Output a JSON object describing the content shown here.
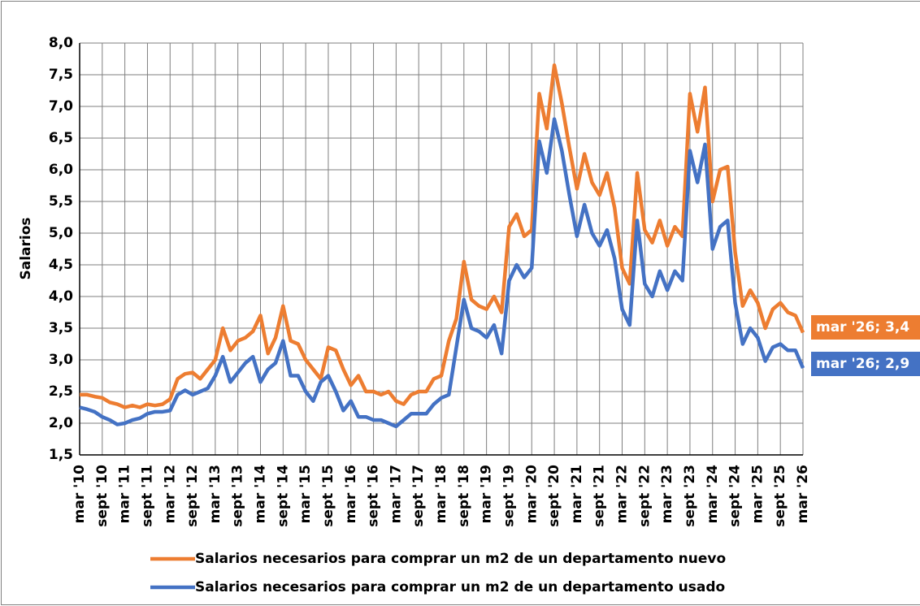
{
  "chart_data": {
    "type": "line",
    "y_label": "Salarios",
    "categories": [
      "mar '10",
      null,
      null,
      "sept '10",
      null,
      null,
      "mar '11",
      null,
      null,
      "sept '11",
      null,
      null,
      "mar '12",
      null,
      null,
      "sept '12",
      null,
      null,
      "mar '13",
      null,
      null,
      "sept '13",
      null,
      null,
      "mar '14",
      null,
      null,
      "sept '14",
      null,
      null,
      "mar '15",
      null,
      null,
      "sept '15",
      null,
      null,
      "mar '16",
      null,
      null,
      "sept '16",
      null,
      null,
      "mar '17",
      null,
      null,
      "sept '17",
      null,
      null,
      "mar '18",
      null,
      null,
      "sept '18",
      null,
      null,
      "mar '19",
      null,
      null,
      "sept '19",
      null,
      null,
      "mar '20",
      null,
      null,
      "sept '20",
      null,
      null,
      "mar '21",
      null,
      null,
      "sept '21",
      null,
      null,
      "mar '22",
      null,
      null,
      "sept '22",
      null,
      null,
      "mar '23",
      null,
      null,
      "sept '23",
      null,
      null,
      "mar '24",
      null,
      null,
      "sept '24",
      null,
      null,
      "mar '25",
      null,
      null,
      "sept '25",
      null,
      null,
      "mar '26"
    ],
    "series": [
      {
        "name": "Salarios necesarios para comprar un m2 de un departamento nuevo",
        "color": "#ed7d31",
        "values": [
          2.45,
          2.45,
          2.42,
          2.4,
          2.33,
          2.3,
          2.25,
          2.28,
          2.25,
          2.3,
          2.28,
          2.3,
          2.38,
          2.7,
          2.78,
          2.8,
          2.7,
          2.85,
          3.0,
          3.5,
          3.15,
          3.3,
          3.35,
          3.45,
          3.7,
          3.1,
          3.35,
          3.85,
          3.3,
          3.25,
          3.0,
          2.85,
          2.7,
          3.2,
          3.15,
          2.85,
          2.6,
          2.75,
          2.5,
          2.5,
          2.45,
          2.5,
          2.35,
          2.3,
          2.45,
          2.5,
          2.5,
          2.7,
          2.75,
          3.3,
          3.65,
          4.55,
          3.95,
          3.85,
          3.8,
          4.0,
          3.75,
          5.1,
          5.3,
          4.95,
          5.05,
          7.2,
          6.65,
          7.65,
          7.05,
          6.35,
          5.7,
          6.25,
          5.8,
          5.6,
          5.95,
          5.4,
          4.45,
          4.2,
          5.95,
          5.05,
          4.85,
          5.2,
          4.8,
          5.1,
          4.95,
          7.2,
          6.6,
          7.3,
          5.5,
          6.0,
          6.05,
          4.7,
          3.85,
          4.1,
          3.9,
          3.5,
          3.8,
          3.9,
          3.75,
          3.7,
          3.43
        ]
      },
      {
        "name": "Salarios necesarios para comprar un m2 de un departamento usado",
        "color": "#4472c4",
        "values": [
          2.25,
          2.22,
          2.18,
          2.1,
          2.05,
          1.98,
          2.0,
          2.05,
          2.08,
          2.15,
          2.18,
          2.18,
          2.2,
          2.45,
          2.52,
          2.45,
          2.5,
          2.55,
          2.75,
          3.05,
          2.65,
          2.8,
          2.95,
          3.05,
          2.65,
          2.85,
          2.95,
          3.3,
          2.75,
          2.75,
          2.5,
          2.35,
          2.65,
          2.75,
          2.5,
          2.2,
          2.35,
          2.1,
          2.1,
          2.05,
          2.05,
          2.0,
          1.95,
          2.05,
          2.15,
          2.15,
          2.15,
          2.3,
          2.4,
          2.45,
          3.2,
          3.95,
          3.5,
          3.45,
          3.35,
          3.55,
          3.1,
          4.25,
          4.5,
          4.3,
          4.45,
          6.45,
          5.95,
          6.8,
          6.3,
          5.6,
          4.95,
          5.45,
          5.0,
          4.8,
          5.05,
          4.6,
          3.8,
          3.55,
          5.2,
          4.2,
          4.0,
          4.4,
          4.1,
          4.4,
          4.25,
          6.3,
          5.8,
          6.4,
          4.75,
          5.1,
          5.2,
          3.9,
          3.25,
          3.5,
          3.35,
          2.98,
          3.2,
          3.25,
          3.15,
          3.15,
          2.87
        ]
      }
    ],
    "annotations": [
      {
        "text": "mar '26; 3,4",
        "color": "#ed7d31"
      },
      {
        "text": "mar '26; 2,9",
        "color": "#4472c4"
      }
    ],
    "ylim": [
      1.5,
      8.0
    ],
    "yticks": [
      {
        "value": 1.5,
        "label": "1,5"
      },
      {
        "value": 2.0,
        "label": "2,0"
      },
      {
        "value": 2.5,
        "label": "2,5"
      },
      {
        "value": 3.0,
        "label": "3,0"
      },
      {
        "value": 3.5,
        "label": "3,5"
      },
      {
        "value": 4.0,
        "label": "4,0"
      },
      {
        "value": 4.5,
        "label": "4,5"
      },
      {
        "value": 5.0,
        "label": "5,0"
      },
      {
        "value": 5.5,
        "label": "5,5"
      },
      {
        "value": 6.0,
        "label": "6,0"
      },
      {
        "value": 6.5,
        "label": "6,5"
      },
      {
        "value": 7.0,
        "label": "7,0"
      },
      {
        "value": 7.5,
        "label": "7,5"
      },
      {
        "value": 8.0,
        "label": "8,0"
      }
    ],
    "grid": true
  }
}
